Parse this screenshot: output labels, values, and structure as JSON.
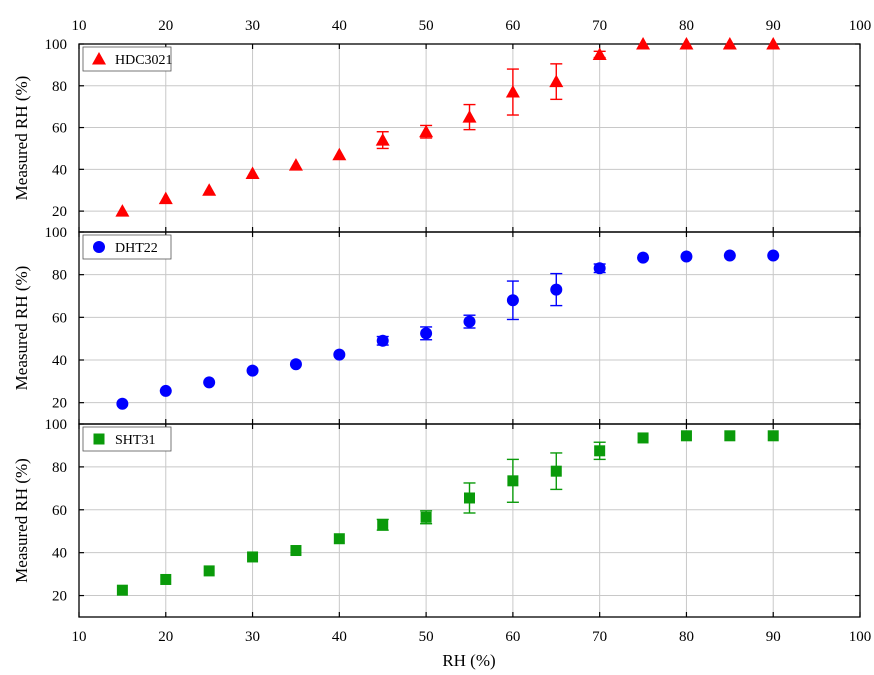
{
  "figure": {
    "xlabel": "RH (%)",
    "ylabel": "Measured RH (%)"
  },
  "chart_data": [
    {
      "type": "scatter",
      "title": "",
      "xlabel": "RH (%)",
      "ylabel": "Measured RH (%)",
      "xlim": [
        10,
        100
      ],
      "ylim": [
        10,
        100
      ],
      "x_ticks": [
        10,
        20,
        30,
        40,
        50,
        60,
        70,
        80,
        90,
        100
      ],
      "y_ticks": [
        20,
        40,
        60,
        80,
        100
      ],
      "grid": true,
      "legend_position": "top-left",
      "series": [
        {
          "name": "HDC3021",
          "marker": "triangle",
          "color": "#ff0000",
          "x": [
            15,
            20,
            25,
            30,
            35,
            40,
            45,
            50,
            55,
            60,
            65,
            70,
            75,
            80,
            85,
            90
          ],
          "y": [
            20,
            26,
            30,
            38,
            42,
            47,
            54,
            58,
            65,
            77,
            82,
            95,
            100,
            100,
            100,
            100
          ],
          "err": [
            0.5,
            0.5,
            1,
            1,
            1,
            1,
            4,
            3,
            6,
            11,
            8.5,
            1.5,
            0.5,
            0.5,
            0.5,
            0.5
          ]
        }
      ]
    },
    {
      "type": "scatter",
      "title": "",
      "xlabel": "RH (%)",
      "ylabel": "Measured RH (%)",
      "xlim": [
        10,
        100
      ],
      "ylim": [
        10,
        100
      ],
      "x_ticks": [
        10,
        20,
        30,
        40,
        50,
        60,
        70,
        80,
        90,
        100
      ],
      "y_ticks": [
        20,
        40,
        60,
        80,
        100
      ],
      "grid": true,
      "legend_position": "top-left",
      "series": [
        {
          "name": "DHT22",
          "marker": "circle",
          "color": "#0000ff",
          "x": [
            15,
            20,
            25,
            30,
            35,
            40,
            45,
            50,
            55,
            60,
            65,
            70,
            75,
            80,
            85,
            90
          ],
          "y": [
            19.5,
            25.5,
            29.5,
            35,
            38,
            42.5,
            49,
            52.5,
            58,
            68,
            73,
            83,
            88,
            88.5,
            89,
            89
          ],
          "err": [
            0.5,
            0.5,
            0.5,
            0.5,
            0.5,
            0.5,
            2,
            3,
            3,
            9,
            7.5,
            2,
            0.5,
            0.5,
            0.5,
            0.5
          ]
        }
      ]
    },
    {
      "type": "scatter",
      "title": "",
      "xlabel": "RH (%)",
      "ylabel": "Measured RH (%)",
      "xlim": [
        10,
        100
      ],
      "ylim": [
        10,
        100
      ],
      "x_ticks": [
        10,
        20,
        30,
        40,
        50,
        60,
        70,
        80,
        90,
        100
      ],
      "y_ticks": [
        20,
        40,
        60,
        80,
        100
      ],
      "grid": true,
      "legend_position": "top-left",
      "series": [
        {
          "name": "SHT31",
          "marker": "square",
          "color": "#0a9a0a",
          "x": [
            15,
            20,
            25,
            30,
            35,
            40,
            45,
            50,
            55,
            60,
            65,
            70,
            75,
            80,
            85,
            90
          ],
          "y": [
            22.5,
            27.5,
            31.5,
            38,
            41,
            46.5,
            53,
            56.5,
            65.5,
            73.5,
            78,
            87.5,
            93.5,
            94.5,
            94.5,
            94.5
          ],
          "err": [
            0.5,
            0.5,
            0.5,
            0.5,
            0.5,
            0.5,
            2.5,
            3,
            7,
            10,
            8.5,
            4,
            0.5,
            0.5,
            0.5,
            0.5
          ]
        }
      ]
    }
  ]
}
